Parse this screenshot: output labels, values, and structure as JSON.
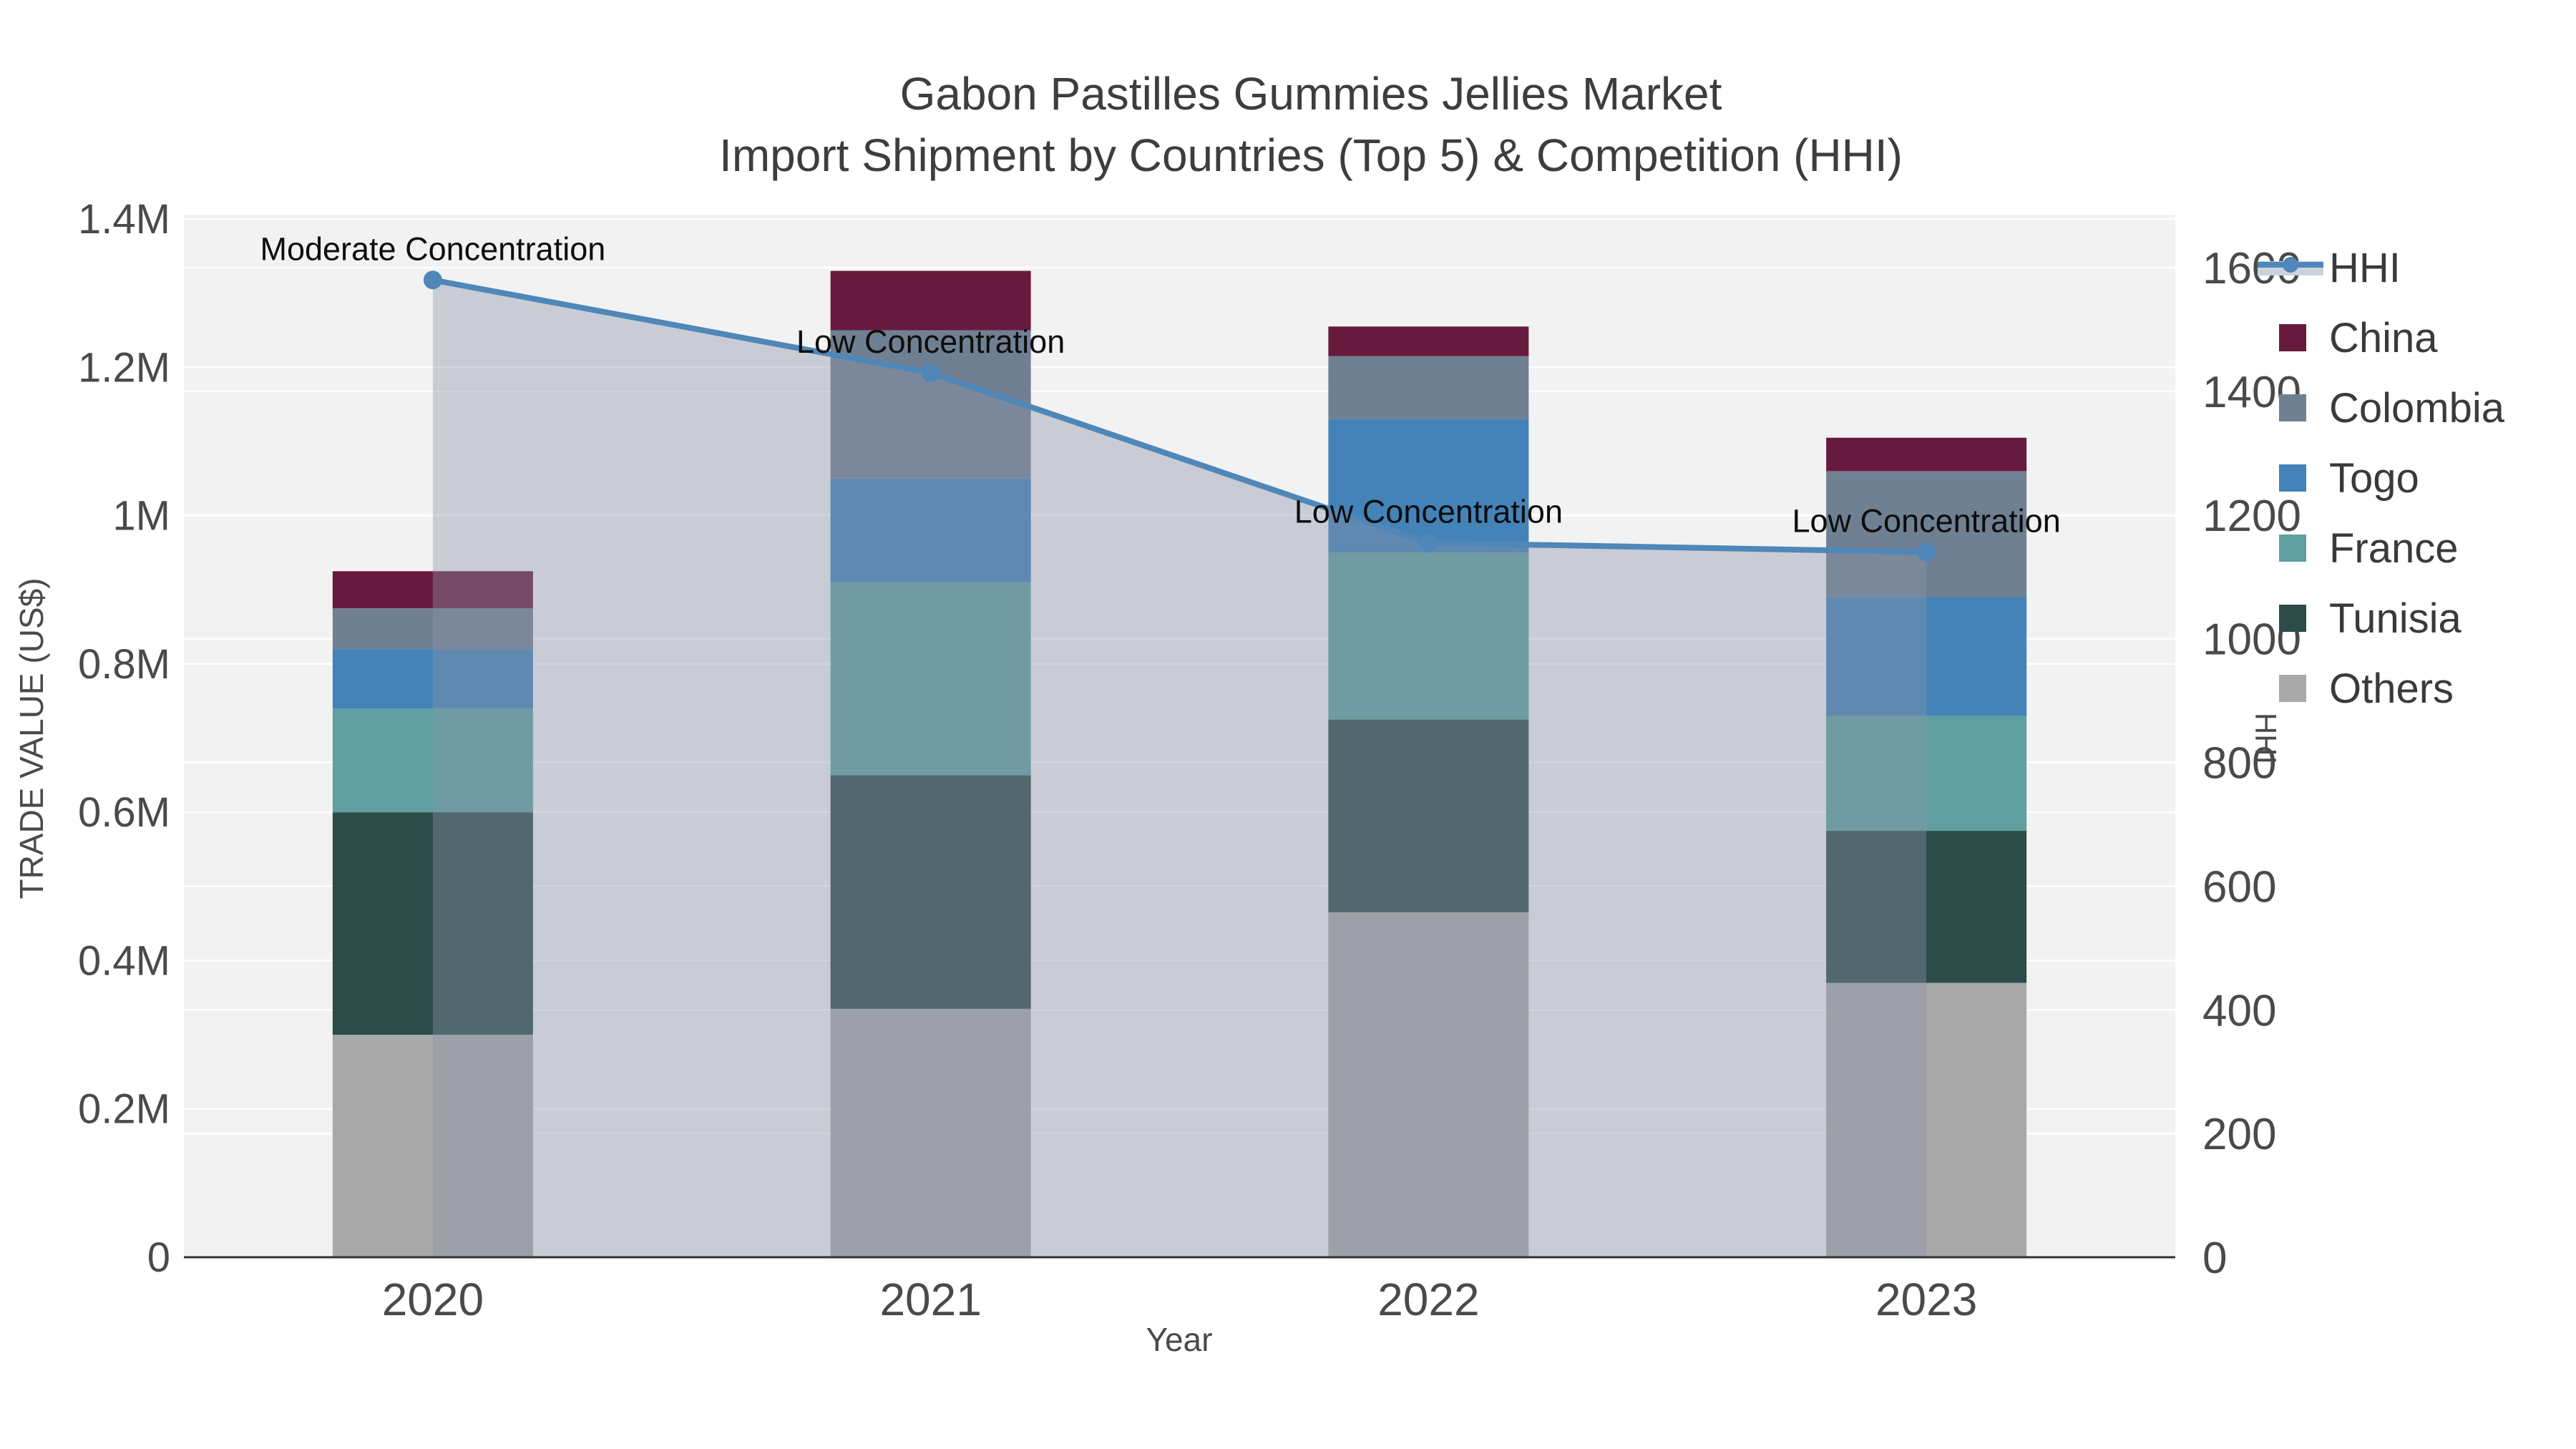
{
  "title": {
    "line1": "Gabon Pastilles Gummies Jellies Market",
    "line2": "Import Shipment by Countries (Top 5) & Competition (HHI)"
  },
  "axes": {
    "x": {
      "title": "Year",
      "categories": [
        "2020",
        "2021",
        "2022",
        "2023"
      ]
    },
    "y_left": {
      "title": "TRADE VALUE (US$)",
      "ticks": [
        "0",
        "0.2M",
        "0.4M",
        "0.6M",
        "0.8M",
        "1M",
        "1.2M",
        "1.4M"
      ],
      "tick_values": [
        0,
        200000,
        400000,
        600000,
        800000,
        1000000,
        1200000,
        1400000
      ],
      "max": 1400000
    },
    "y_right": {
      "title": "HHI",
      "ticks": [
        "0",
        "200",
        "400",
        "600",
        "800",
        "1000",
        "1200",
        "1400",
        "1600"
      ],
      "tick_values": [
        0,
        200,
        400,
        600,
        800,
        1000,
        1200,
        1400,
        1600
      ],
      "max": 1600
    }
  },
  "legend": {
    "items": [
      {
        "label": "HHI",
        "type": "line",
        "color_key": "hhi_line"
      },
      {
        "label": "China",
        "type": "swatch",
        "color_key": "china"
      },
      {
        "label": "Colombia",
        "type": "swatch",
        "color_key": "colombia"
      },
      {
        "label": "Togo",
        "type": "swatch",
        "color_key": "togo"
      },
      {
        "label": "France",
        "type": "swatch",
        "color_key": "france"
      },
      {
        "label": "Tunisia",
        "type": "swatch",
        "color_key": "tunisia"
      },
      {
        "label": "Others",
        "type": "swatch",
        "color_key": "others"
      }
    ]
  },
  "colors": {
    "china": "#671a3d",
    "colombia": "#708093",
    "togo": "#4383b8",
    "france": "#60a0a1",
    "tunisia": "#2b4c48",
    "others": "#a9a9a9",
    "hhi_line": "#4e87b8",
    "area_fill": "rgba(139,148,167,0.4)",
    "legend_area_swatch": "#ccd2dc",
    "plot_bg": "#f2f2f3",
    "grid": "#ffffff",
    "axis_line": "#333333",
    "title_text": "#3d3d3d",
    "tick_text": "#4a4a4a",
    "axis_title_text": "#4a4a4a",
    "annotation_text": "#0d0d0d",
    "legend_text": "#3a3a3a"
  },
  "chart_data": {
    "type": "bar-stacked-with-line",
    "title": "Gabon Pastilles Gummies Jellies Market — Import Shipment by Countries (Top 5) & Competition (HHI)",
    "xlabel": "Year",
    "ylabel": "TRADE VALUE (US$)",
    "ylabel_right": "HHI",
    "categories": [
      "2020",
      "2021",
      "2022",
      "2023"
    ],
    "series": [
      {
        "name": "Others",
        "values": [
          300000,
          335000,
          465000,
          370000
        ]
      },
      {
        "name": "Tunisia",
        "values": [
          300000,
          315000,
          260000,
          205000
        ]
      },
      {
        "name": "France",
        "values": [
          140000,
          260000,
          225000,
          155000
        ]
      },
      {
        "name": "Togo",
        "values": [
          80000,
          140000,
          180000,
          160000
        ]
      },
      {
        "name": "Colombia",
        "values": [
          55000,
          200000,
          85000,
          170000
        ]
      },
      {
        "name": "China",
        "values": [
          50000,
          80000,
          40000,
          45000
        ]
      }
    ],
    "stack_totals": [
      925000,
      1330000,
      1255000,
      1105000
    ],
    "line_series": {
      "name": "HHI",
      "axis": "right",
      "values": [
        1580,
        1430,
        1155,
        1140
      ],
      "area_fill": true
    },
    "annotations": [
      "Moderate Concentration",
      "Low Concentration",
      "Low Concentration",
      "Low Concentration"
    ],
    "ylim_left": [
      0,
      1400000
    ],
    "ylim_right": [
      0,
      1600
    ],
    "grid": true,
    "legend_position": "right"
  }
}
